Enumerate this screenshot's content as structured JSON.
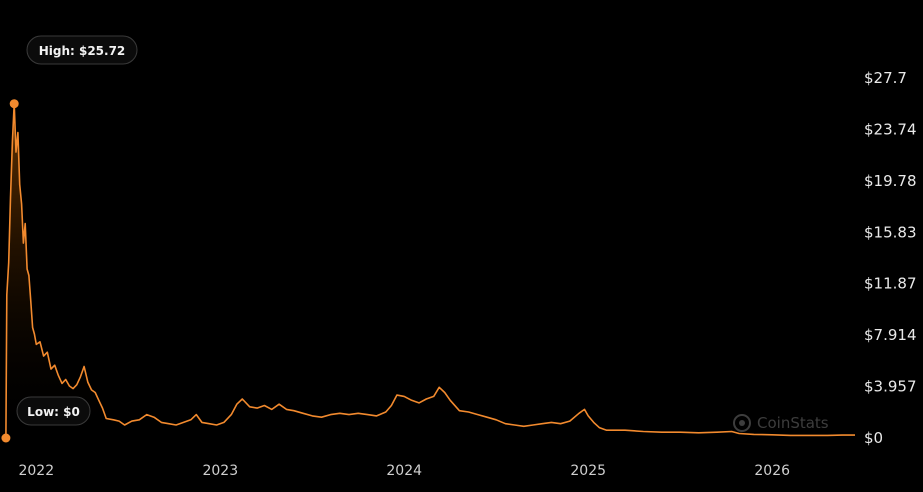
{
  "chart_data": {
    "type": "area",
    "y_axis_position": "right",
    "grid": false,
    "ylim": [
      0,
      27.7
    ],
    "y_ticks": [
      "$27.7",
      "$23.74",
      "$19.78",
      "$15.83",
      "$11.87",
      "$7.914",
      "$3.957",
      "$0"
    ],
    "y_tick_values": [
      27.7,
      23.74,
      19.78,
      15.83,
      11.87,
      7.914,
      3.957,
      0
    ],
    "x_ticks": [
      "2022",
      "2023",
      "2024",
      "2025",
      "2026"
    ],
    "x_tick_values": [
      2022.0,
      2023.0,
      2024.0,
      2025.0,
      2026.0
    ],
    "xlim": [
      2021.83,
      2026.45
    ],
    "high_label": "High: $25.72",
    "low_label": "Low: $0",
    "high": {
      "x": 2021.88,
      "y": 25.72
    },
    "low": {
      "x": 2021.835,
      "y": 0
    },
    "series": [
      {
        "color": "#f28a2e",
        "points": [
          [
            2021.835,
            0.0
          ],
          [
            2021.84,
            11.0
          ],
          [
            2021.85,
            13.5
          ],
          [
            2021.86,
            18.5
          ],
          [
            2021.87,
            22.8
          ],
          [
            2021.88,
            25.72
          ],
          [
            2021.89,
            22.0
          ],
          [
            2021.9,
            23.5
          ],
          [
            2021.91,
            19.5
          ],
          [
            2021.92,
            18.0
          ],
          [
            2021.93,
            15.0
          ],
          [
            2021.94,
            16.5
          ],
          [
            2021.95,
            13.0
          ],
          [
            2021.96,
            12.5
          ],
          [
            2021.97,
            10.5
          ],
          [
            2021.98,
            8.5
          ],
          [
            2021.99,
            8.0
          ],
          [
            2022.0,
            7.2
          ],
          [
            2022.02,
            7.4
          ],
          [
            2022.04,
            6.3
          ],
          [
            2022.06,
            6.6
          ],
          [
            2022.08,
            5.3
          ],
          [
            2022.1,
            5.6
          ],
          [
            2022.12,
            4.8
          ],
          [
            2022.14,
            4.2
          ],
          [
            2022.16,
            4.5
          ],
          [
            2022.18,
            4.0
          ],
          [
            2022.2,
            3.8
          ],
          [
            2022.22,
            4.1
          ],
          [
            2022.24,
            4.7
          ],
          [
            2022.26,
            5.5
          ],
          [
            2022.28,
            4.3
          ],
          [
            2022.3,
            3.7
          ],
          [
            2022.32,
            3.5
          ],
          [
            2022.34,
            2.9
          ],
          [
            2022.36,
            2.3
          ],
          [
            2022.38,
            1.5
          ],
          [
            2022.42,
            1.4
          ],
          [
            2022.45,
            1.3
          ],
          [
            2022.48,
            1.0
          ],
          [
            2022.52,
            1.3
          ],
          [
            2022.56,
            1.4
          ],
          [
            2022.6,
            1.8
          ],
          [
            2022.64,
            1.6
          ],
          [
            2022.68,
            1.2
          ],
          [
            2022.72,
            1.1
          ],
          [
            2022.76,
            1.0
          ],
          [
            2022.8,
            1.2
          ],
          [
            2022.84,
            1.4
          ],
          [
            2022.87,
            1.8
          ],
          [
            2022.9,
            1.2
          ],
          [
            2022.94,
            1.1
          ],
          [
            2022.98,
            1.0
          ],
          [
            2023.02,
            1.2
          ],
          [
            2023.06,
            1.8
          ],
          [
            2023.09,
            2.6
          ],
          [
            2023.12,
            3.0
          ],
          [
            2023.16,
            2.4
          ],
          [
            2023.2,
            2.3
          ],
          [
            2023.24,
            2.5
          ],
          [
            2023.28,
            2.2
          ],
          [
            2023.32,
            2.6
          ],
          [
            2023.36,
            2.2
          ],
          [
            2023.4,
            2.1
          ],
          [
            2023.45,
            1.9
          ],
          [
            2023.5,
            1.7
          ],
          [
            2023.55,
            1.6
          ],
          [
            2023.6,
            1.8
          ],
          [
            2023.65,
            1.9
          ],
          [
            2023.7,
            1.8
          ],
          [
            2023.75,
            1.9
          ],
          [
            2023.8,
            1.8
          ],
          [
            2023.85,
            1.7
          ],
          [
            2023.9,
            2.0
          ],
          [
            2023.93,
            2.5
          ],
          [
            2023.96,
            3.3
          ],
          [
            2024.0,
            3.2
          ],
          [
            2024.04,
            2.9
          ],
          [
            2024.08,
            2.7
          ],
          [
            2024.12,
            3.0
          ],
          [
            2024.16,
            3.2
          ],
          [
            2024.19,
            3.9
          ],
          [
            2024.22,
            3.5
          ],
          [
            2024.25,
            2.9
          ],
          [
            2024.3,
            2.1
          ],
          [
            2024.35,
            2.0
          ],
          [
            2024.4,
            1.8
          ],
          [
            2024.45,
            1.6
          ],
          [
            2024.5,
            1.4
          ],
          [
            2024.55,
            1.1
          ],
          [
            2024.6,
            1.0
          ],
          [
            2024.65,
            0.9
          ],
          [
            2024.7,
            1.0
          ],
          [
            2024.75,
            1.1
          ],
          [
            2024.8,
            1.2
          ],
          [
            2024.85,
            1.1
          ],
          [
            2024.9,
            1.3
          ],
          [
            2024.95,
            1.9
          ],
          [
            2024.98,
            2.2
          ],
          [
            2025.0,
            1.7
          ],
          [
            2025.03,
            1.2
          ],
          [
            2025.06,
            0.8
          ],
          [
            2025.1,
            0.6
          ],
          [
            2025.2,
            0.6
          ],
          [
            2025.3,
            0.5
          ],
          [
            2025.4,
            0.45
          ],
          [
            2025.5,
            0.45
          ],
          [
            2025.6,
            0.4
          ],
          [
            2025.7,
            0.45
          ],
          [
            2025.78,
            0.5
          ],
          [
            2025.82,
            0.35
          ],
          [
            2025.9,
            0.28
          ],
          [
            2026.0,
            0.25
          ],
          [
            2026.1,
            0.2
          ],
          [
            2026.2,
            0.2
          ],
          [
            2026.3,
            0.2
          ],
          [
            2026.38,
            0.22
          ],
          [
            2026.45,
            0.22
          ]
        ]
      }
    ]
  },
  "watermark": {
    "label": "CoinStats",
    "icon": "coinstats-logo-icon"
  }
}
